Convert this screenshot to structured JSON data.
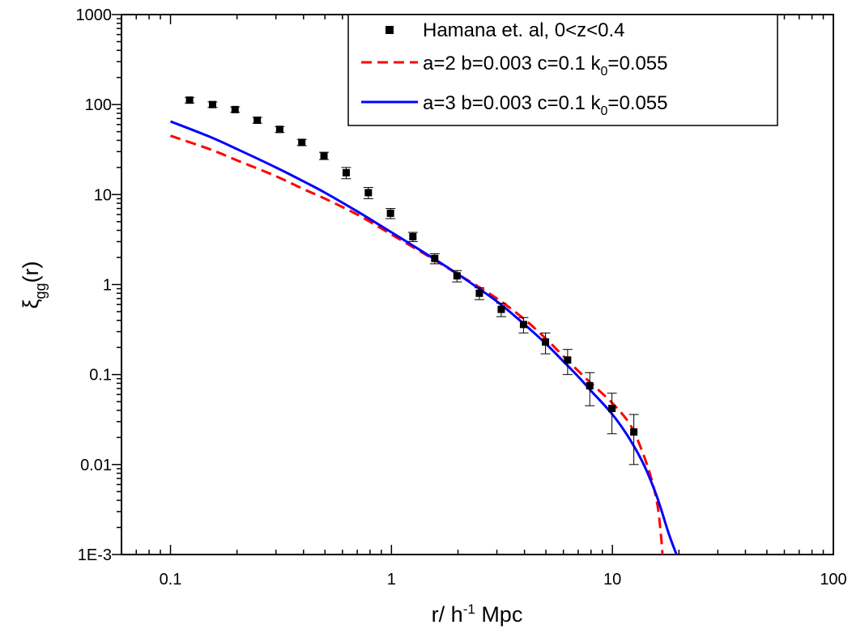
{
  "chart_data": {
    "type": "scatter",
    "xscale": "log",
    "yscale": "log",
    "xlim": [
      0.06,
      100
    ],
    "ylim": [
      0.001,
      1000
    ],
    "x_ticks": [
      {
        "value": 0.1,
        "label": "0.1"
      },
      {
        "value": 1,
        "label": "1"
      },
      {
        "value": 10,
        "label": "10"
      },
      {
        "value": 100,
        "label": "100"
      }
    ],
    "y_ticks": [
      {
        "value": 0.001,
        "label": "1E-3"
      },
      {
        "value": 0.01,
        "label": "0.01"
      },
      {
        "value": 0.1,
        "label": "0.1"
      },
      {
        "value": 1,
        "label": "1"
      },
      {
        "value": 10,
        "label": "10"
      },
      {
        "value": 100,
        "label": "100"
      },
      {
        "value": 1000,
        "label": "1000"
      }
    ],
    "xlabel": {
      "main": "r/ h",
      "sup": "-1",
      "rest": " Mpc"
    },
    "ylabel": {
      "main": "ξ",
      "sub": "gg",
      "rest": "(r)"
    },
    "legend_position": "top-right",
    "series": [
      {
        "name": "Hamana et. al,  0<z<0.4",
        "kind": "points",
        "color": "#000000",
        "points": [
          {
            "x": 0.122,
            "y": 112,
            "err": 8
          },
          {
            "x": 0.155,
            "y": 100,
            "err": 7
          },
          {
            "x": 0.196,
            "y": 88,
            "err": 6
          },
          {
            "x": 0.247,
            "y": 67,
            "err": 5
          },
          {
            "x": 0.312,
            "y": 53,
            "err": 4
          },
          {
            "x": 0.393,
            "y": 38,
            "err": 3
          },
          {
            "x": 0.495,
            "y": 27,
            "err": 2.5
          },
          {
            "x": 0.624,
            "y": 17.5,
            "err": 2.5
          },
          {
            "x": 0.786,
            "y": 10.5,
            "err": 1.5
          },
          {
            "x": 0.99,
            "y": 6.2,
            "err": 0.8
          },
          {
            "x": 1.25,
            "y": 3.4,
            "err": 0.4
          },
          {
            "x": 1.57,
            "y": 1.95,
            "err": 0.25
          },
          {
            "x": 1.98,
            "y": 1.25,
            "err": 0.18
          },
          {
            "x": 2.5,
            "y": 0.8,
            "err": 0.12
          },
          {
            "x": 3.14,
            "y": 0.53,
            "err": 0.09
          },
          {
            "x": 3.96,
            "y": 0.36,
            "err": 0.07
          },
          {
            "x": 4.98,
            "y": 0.23,
            "err": 0.06
          },
          {
            "x": 6.27,
            "y": 0.145,
            "err": 0.045
          },
          {
            "x": 7.9,
            "y": 0.075,
            "err": 0.03
          },
          {
            "x": 9.95,
            "y": 0.042,
            "err": 0.02
          },
          {
            "x": 12.5,
            "y": 0.023,
            "err": 0.013
          }
        ]
      },
      {
        "name": "a=2  b=0.003  c=0.1  k",
        "name_sub": "0",
        "name_rest": "=0.055",
        "kind": "line",
        "dash": true,
        "color": "#ff0000",
        "points": [
          {
            "x": 0.1,
            "y": 45
          },
          {
            "x": 0.15,
            "y": 32
          },
          {
            "x": 0.2,
            "y": 24
          },
          {
            "x": 0.3,
            "y": 16
          },
          {
            "x": 0.4,
            "y": 11.5
          },
          {
            "x": 0.5,
            "y": 9
          },
          {
            "x": 0.7,
            "y": 6
          },
          {
            "x": 1.0,
            "y": 3.6
          },
          {
            "x": 1.5,
            "y": 2.0
          },
          {
            "x": 2.0,
            "y": 1.3
          },
          {
            "x": 3.0,
            "y": 0.7
          },
          {
            "x": 4.0,
            "y": 0.41
          },
          {
            "x": 5.0,
            "y": 0.25
          },
          {
            "x": 6.0,
            "y": 0.16
          },
          {
            "x": 7.0,
            "y": 0.11
          },
          {
            "x": 8.0,
            "y": 0.08
          },
          {
            "x": 10.0,
            "y": 0.048
          },
          {
            "x": 12.0,
            "y": 0.028
          },
          {
            "x": 13.5,
            "y": 0.015
          },
          {
            "x": 15.0,
            "y": 0.007
          },
          {
            "x": 16.0,
            "y": 0.0035
          },
          {
            "x": 16.6,
            "y": 0.0016
          },
          {
            "x": 16.85,
            "y": 0.001
          }
        ]
      },
      {
        "name": "a=3  b=0.003  c=0.1  k",
        "name_sub": "0",
        "name_rest": "=0.055",
        "kind": "line",
        "dash": false,
        "color": "#0000ff",
        "points": [
          {
            "x": 0.1,
            "y": 65
          },
          {
            "x": 0.15,
            "y": 44
          },
          {
            "x": 0.2,
            "y": 32
          },
          {
            "x": 0.3,
            "y": 20
          },
          {
            "x": 0.4,
            "y": 14
          },
          {
            "x": 0.5,
            "y": 10.5
          },
          {
            "x": 0.7,
            "y": 6.5
          },
          {
            "x": 1.0,
            "y": 3.8
          },
          {
            "x": 1.5,
            "y": 2.05
          },
          {
            "x": 2.0,
            "y": 1.3
          },
          {
            "x": 3.0,
            "y": 0.65
          },
          {
            "x": 4.0,
            "y": 0.36
          },
          {
            "x": 5.0,
            "y": 0.22
          },
          {
            "x": 6.0,
            "y": 0.14
          },
          {
            "x": 7.0,
            "y": 0.095
          },
          {
            "x": 8.0,
            "y": 0.066
          },
          {
            "x": 10.0,
            "y": 0.036
          },
          {
            "x": 12.0,
            "y": 0.019
          },
          {
            "x": 14.0,
            "y": 0.0095
          },
          {
            "x": 16.0,
            "y": 0.0042
          },
          {
            "x": 18.0,
            "y": 0.0017
          },
          {
            "x": 19.5,
            "y": 0.001
          }
        ]
      }
    ]
  }
}
